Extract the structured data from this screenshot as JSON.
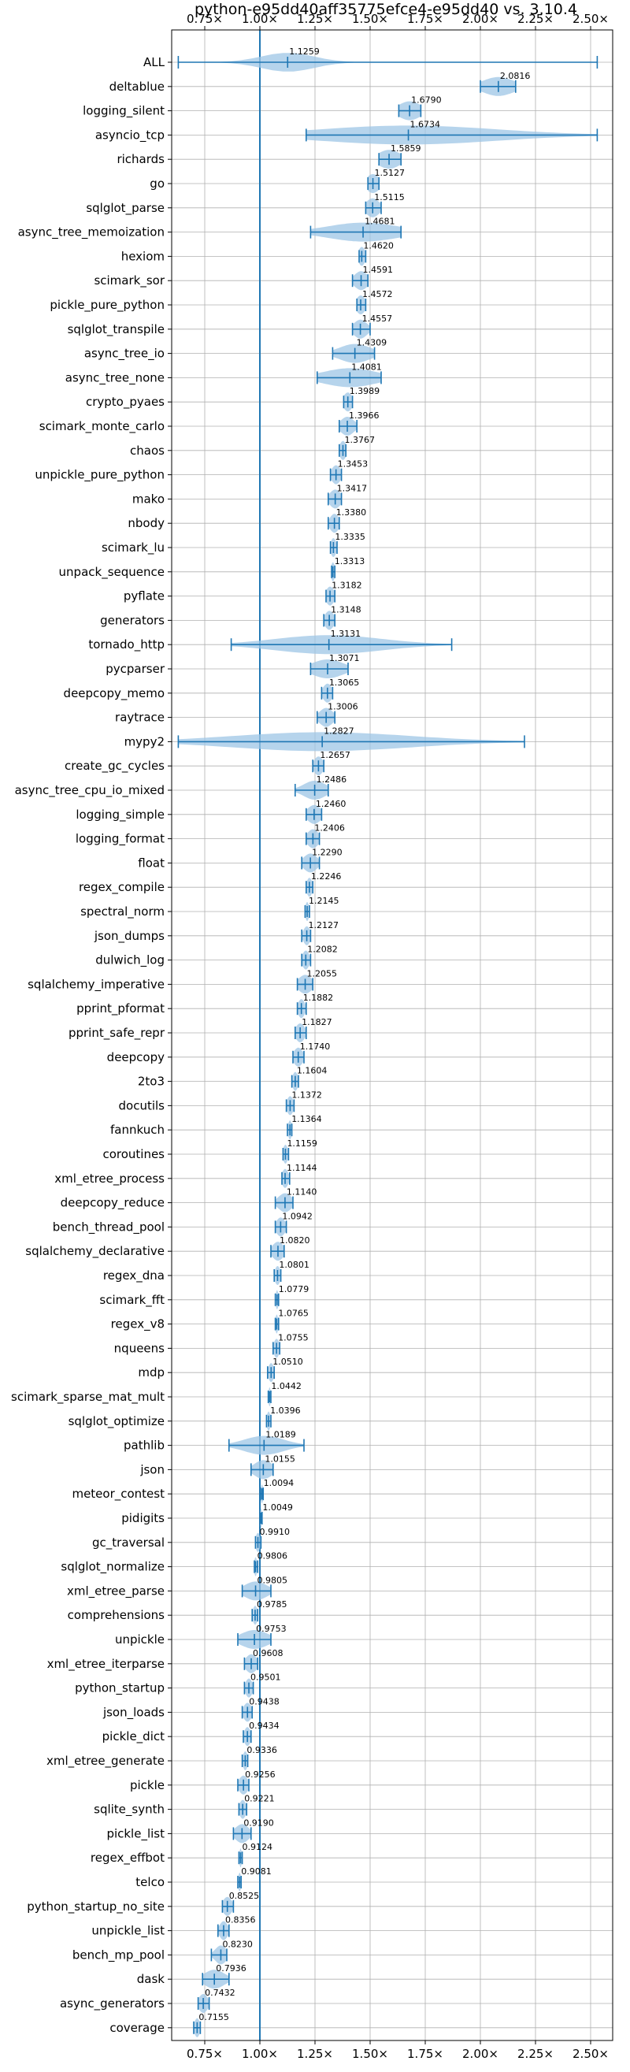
{
  "chart_data": {
    "type": "violin",
    "title": "python-e95dd40aff35775efce4-e95dd40 vs. 3.10.4",
    "xlabel": "",
    "ylabel": "",
    "xlim": [
      0.6,
      2.6
    ],
    "x_ticks": [
      0.75,
      1.0,
      1.25,
      1.5,
      1.75,
      2.0,
      2.25,
      2.5
    ],
    "x_tick_labels": [
      "0.75×",
      "1.00×",
      "1.25×",
      "1.50×",
      "1.75×",
      "2.00×",
      "2.25×",
      "2.50×"
    ],
    "reference_line": 1.0,
    "grid": true,
    "colors": {
      "violin": "#9ec5e6",
      "line": "#1f77b4"
    },
    "benchmarks": [
      {
        "name": "ALL",
        "label": "1.1259",
        "median": 1.1259,
        "min": 0.63,
        "max": 2.53,
        "spread": 0.12
      },
      {
        "name": "deltablue",
        "label": "2.0816",
        "median": 2.0816,
        "min": 2.0,
        "max": 2.16,
        "spread": 0.07
      },
      {
        "name": "logging_silent",
        "label": "1.6790",
        "median": 1.679,
        "min": 1.63,
        "max": 1.73,
        "spread": 0.05
      },
      {
        "name": "asyncio_tcp",
        "label": "1.6734",
        "median": 1.6734,
        "min": 1.21,
        "max": 2.53,
        "spread": 0.4
      },
      {
        "name": "richards",
        "label": "1.5859",
        "median": 1.5859,
        "min": 1.54,
        "max": 1.64,
        "spread": 0.05
      },
      {
        "name": "go",
        "label": "1.5127",
        "median": 1.5127,
        "min": 1.49,
        "max": 1.54,
        "spread": 0.03
      },
      {
        "name": "sqlglot_parse",
        "label": "1.5115",
        "median": 1.5115,
        "min": 1.48,
        "max": 1.55,
        "spread": 0.03
      },
      {
        "name": "async_tree_memoization",
        "label": "1.4681",
        "median": 1.4681,
        "min": 1.23,
        "max": 1.64,
        "spread": 0.16
      },
      {
        "name": "hexiom",
        "label": "1.4620",
        "median": 1.462,
        "min": 1.45,
        "max": 1.48,
        "spread": 0.015
      },
      {
        "name": "scimark_sor",
        "label": "1.4591",
        "median": 1.4591,
        "min": 1.42,
        "max": 1.49,
        "spread": 0.03
      },
      {
        "name": "pickle_pure_python",
        "label": "1.4572",
        "median": 1.4572,
        "min": 1.44,
        "max": 1.48,
        "spread": 0.02
      },
      {
        "name": "sqlglot_transpile",
        "label": "1.4557",
        "median": 1.4557,
        "min": 1.42,
        "max": 1.5,
        "spread": 0.03
      },
      {
        "name": "async_tree_io",
        "label": "1.4309",
        "median": 1.4309,
        "min": 1.33,
        "max": 1.52,
        "spread": 0.07
      },
      {
        "name": "async_tree_none",
        "label": "1.4081",
        "median": 1.4081,
        "min": 1.26,
        "max": 1.55,
        "spread": 0.12
      },
      {
        "name": "crypto_pyaes",
        "label": "1.3989",
        "median": 1.3989,
        "min": 1.38,
        "max": 1.42,
        "spread": 0.02
      },
      {
        "name": "scimark_monte_carlo",
        "label": "1.3966",
        "median": 1.3966,
        "min": 1.36,
        "max": 1.44,
        "spread": 0.03
      },
      {
        "name": "chaos",
        "label": "1.3767",
        "median": 1.3767,
        "min": 1.36,
        "max": 1.39,
        "spread": 0.015
      },
      {
        "name": "unpickle_pure_python",
        "label": "1.3453",
        "median": 1.3453,
        "min": 1.32,
        "max": 1.37,
        "spread": 0.02
      },
      {
        "name": "mako",
        "label": "1.3417",
        "median": 1.3417,
        "min": 1.31,
        "max": 1.37,
        "spread": 0.025
      },
      {
        "name": "nbody",
        "label": "1.3380",
        "median": 1.338,
        "min": 1.31,
        "max": 1.36,
        "spread": 0.02
      },
      {
        "name": "scimark_lu",
        "label": "1.3335",
        "median": 1.3335,
        "min": 1.32,
        "max": 1.35,
        "spread": 0.012
      },
      {
        "name": "unpack_sequence",
        "label": "1.3313",
        "median": 1.3313,
        "min": 1.325,
        "max": 1.34,
        "spread": 0.008
      },
      {
        "name": "pyflate",
        "label": "1.3182",
        "median": 1.3182,
        "min": 1.3,
        "max": 1.34,
        "spread": 0.018
      },
      {
        "name": "generators",
        "label": "1.3148",
        "median": 1.3148,
        "min": 1.29,
        "max": 1.34,
        "spread": 0.02
      },
      {
        "name": "tornado_http",
        "label": "1.3131",
        "median": 1.3131,
        "min": 0.87,
        "max": 1.87,
        "spread": 0.24
      },
      {
        "name": "pycparser",
        "label": "1.3071",
        "median": 1.3071,
        "min": 1.23,
        "max": 1.4,
        "spread": 0.07
      },
      {
        "name": "deepcopy_memo",
        "label": "1.3065",
        "median": 1.3065,
        "min": 1.28,
        "max": 1.33,
        "spread": 0.02
      },
      {
        "name": "raytrace",
        "label": "1.3006",
        "median": 1.3006,
        "min": 1.26,
        "max": 1.34,
        "spread": 0.03
      },
      {
        "name": "mypy2",
        "label": "1.2827",
        "median": 1.2827,
        "min": 0.63,
        "max": 2.2,
        "spread": 0.4
      },
      {
        "name": "create_gc_cycles",
        "label": "1.2657",
        "median": 1.2657,
        "min": 1.24,
        "max": 1.29,
        "spread": 0.02
      },
      {
        "name": "async_tree_cpu_io_mixed",
        "label": "1.2486",
        "median": 1.2486,
        "min": 1.16,
        "max": 1.31,
        "spread": 0.05
      },
      {
        "name": "logging_simple",
        "label": "1.2460",
        "median": 1.246,
        "min": 1.21,
        "max": 1.28,
        "spread": 0.03
      },
      {
        "name": "logging_format",
        "label": "1.2406",
        "median": 1.2406,
        "min": 1.21,
        "max": 1.27,
        "spread": 0.025
      },
      {
        "name": "float",
        "label": "1.2290",
        "median": 1.229,
        "min": 1.19,
        "max": 1.27,
        "spread": 0.03
      },
      {
        "name": "regex_compile",
        "label": "1.2246",
        "median": 1.2246,
        "min": 1.21,
        "max": 1.24,
        "spread": 0.012
      },
      {
        "name": "spectral_norm",
        "label": "1.2145",
        "median": 1.2145,
        "min": 1.205,
        "max": 1.225,
        "spread": 0.008
      },
      {
        "name": "json_dumps",
        "label": "1.2127",
        "median": 1.2127,
        "min": 1.19,
        "max": 1.23,
        "spread": 0.015
      },
      {
        "name": "dulwich_log",
        "label": "1.2082",
        "median": 1.2082,
        "min": 1.19,
        "max": 1.23,
        "spread": 0.015
      },
      {
        "name": "sqlalchemy_imperative",
        "label": "1.2055",
        "median": 1.2055,
        "min": 1.17,
        "max": 1.24,
        "spread": 0.03
      },
      {
        "name": "pprint_pformat",
        "label": "1.1882",
        "median": 1.1882,
        "min": 1.17,
        "max": 1.21,
        "spread": 0.015
      },
      {
        "name": "pprint_safe_repr",
        "label": "1.1827",
        "median": 1.1827,
        "min": 1.16,
        "max": 1.21,
        "spread": 0.02
      },
      {
        "name": "deepcopy",
        "label": "1.1740",
        "median": 1.174,
        "min": 1.15,
        "max": 1.2,
        "spread": 0.02
      },
      {
        "name": "2to3",
        "label": "1.1604",
        "median": 1.1604,
        "min": 1.145,
        "max": 1.175,
        "spread": 0.012
      },
      {
        "name": "docutils",
        "label": "1.1372",
        "median": 1.1372,
        "min": 1.12,
        "max": 1.155,
        "spread": 0.014
      },
      {
        "name": "fannkuch",
        "label": "1.1364",
        "median": 1.1364,
        "min": 1.125,
        "max": 1.145,
        "spread": 0.008
      },
      {
        "name": "coroutines",
        "label": "1.1159",
        "median": 1.1159,
        "min": 1.105,
        "max": 1.13,
        "spread": 0.01
      },
      {
        "name": "xml_etree_process",
        "label": "1.1144",
        "median": 1.1144,
        "min": 1.1,
        "max": 1.135,
        "spread": 0.014
      },
      {
        "name": "deepcopy_reduce",
        "label": "1.1140",
        "median": 1.114,
        "min": 1.07,
        "max": 1.15,
        "spread": 0.03
      },
      {
        "name": "bench_thread_pool",
        "label": "1.0942",
        "median": 1.0942,
        "min": 1.07,
        "max": 1.12,
        "spread": 0.02
      },
      {
        "name": "sqlalchemy_declarative",
        "label": "1.0820",
        "median": 1.082,
        "min": 1.05,
        "max": 1.11,
        "spread": 0.025
      },
      {
        "name": "regex_dna",
        "label": "1.0801",
        "median": 1.0801,
        "min": 1.065,
        "max": 1.095,
        "spread": 0.012
      },
      {
        "name": "scimark_fft",
        "label": "1.0779",
        "median": 1.0779,
        "min": 1.07,
        "max": 1.085,
        "spread": 0.006
      },
      {
        "name": "regex_v8",
        "label": "1.0765",
        "median": 1.0765,
        "min": 1.07,
        "max": 1.085,
        "spread": 0.006
      },
      {
        "name": "nqueens",
        "label": "1.0755",
        "median": 1.0755,
        "min": 1.06,
        "max": 1.09,
        "spread": 0.012
      },
      {
        "name": "mdp",
        "label": "1.0510",
        "median": 1.051,
        "min": 1.035,
        "max": 1.065,
        "spread": 0.012
      },
      {
        "name": "scimark_sparse_mat_mult",
        "label": "1.0442",
        "median": 1.0442,
        "min": 1.038,
        "max": 1.05,
        "spread": 0.005
      },
      {
        "name": "sqlglot_optimize",
        "label": "1.0396",
        "median": 1.0396,
        "min": 1.03,
        "max": 1.05,
        "spread": 0.008
      },
      {
        "name": "pathlib",
        "label": "1.0189",
        "median": 1.0189,
        "min": 0.86,
        "max": 1.2,
        "spread": 0.09
      },
      {
        "name": "json",
        "label": "1.0155",
        "median": 1.0155,
        "min": 0.96,
        "max": 1.06,
        "spread": 0.04
      },
      {
        "name": "meteor_contest",
        "label": "1.0094",
        "median": 1.0094,
        "min": 1.003,
        "max": 1.015,
        "spread": 0.005
      },
      {
        "name": "pidigits",
        "label": "1.0049",
        "median": 1.0049,
        "min": 1.0,
        "max": 1.01,
        "spread": 0.004
      },
      {
        "name": "gc_traversal",
        "label": "0.9910",
        "median": 0.991,
        "min": 0.98,
        "max": 1.005,
        "spread": 0.01
      },
      {
        "name": "sqlglot_normalize",
        "label": "0.9806",
        "median": 0.9806,
        "min": 0.975,
        "max": 0.99,
        "spread": 0.006
      },
      {
        "name": "xml_etree_parse",
        "label": "0.9805",
        "median": 0.9805,
        "min": 0.92,
        "max": 1.05,
        "spread": 0.05
      },
      {
        "name": "comprehensions",
        "label": "0.9785",
        "median": 0.9785,
        "min": 0.965,
        "max": 0.99,
        "spread": 0.01
      },
      {
        "name": "unpickle",
        "label": "0.9753",
        "median": 0.9753,
        "min": 0.9,
        "max": 1.05,
        "spread": 0.06
      },
      {
        "name": "xml_etree_iterparse",
        "label": "0.9608",
        "median": 0.9608,
        "min": 0.93,
        "max": 0.99,
        "spread": 0.025
      },
      {
        "name": "python_startup",
        "label": "0.9501",
        "median": 0.9501,
        "min": 0.93,
        "max": 0.97,
        "spread": 0.015
      },
      {
        "name": "json_loads",
        "label": "0.9438",
        "median": 0.9438,
        "min": 0.92,
        "max": 0.965,
        "spread": 0.018
      },
      {
        "name": "pickle_dict",
        "label": "0.9434",
        "median": 0.9434,
        "min": 0.925,
        "max": 0.96,
        "spread": 0.014
      },
      {
        "name": "xml_etree_generate",
        "label": "0.9336",
        "median": 0.9336,
        "min": 0.92,
        "max": 0.945,
        "spread": 0.01
      },
      {
        "name": "pickle",
        "label": "0.9256",
        "median": 0.9256,
        "min": 0.9,
        "max": 0.95,
        "spread": 0.02
      },
      {
        "name": "sqlite_synth",
        "label": "0.9221",
        "median": 0.9221,
        "min": 0.905,
        "max": 0.94,
        "spread": 0.014
      },
      {
        "name": "pickle_list",
        "label": "0.9190",
        "median": 0.919,
        "min": 0.88,
        "max": 0.96,
        "spread": 0.03
      },
      {
        "name": "regex_effbot",
        "label": "0.9124",
        "median": 0.9124,
        "min": 0.905,
        "max": 0.92,
        "spread": 0.005
      },
      {
        "name": "telco",
        "label": "0.9081",
        "median": 0.9081,
        "min": 0.9,
        "max": 0.915,
        "spread": 0.006
      },
      {
        "name": "python_startup_no_site",
        "label": "0.8525",
        "median": 0.8525,
        "min": 0.83,
        "max": 0.88,
        "spread": 0.02
      },
      {
        "name": "unpickle_list",
        "label": "0.8356",
        "median": 0.8356,
        "min": 0.81,
        "max": 0.86,
        "spread": 0.018
      },
      {
        "name": "bench_mp_pool",
        "label": "0.8230",
        "median": 0.823,
        "min": 0.78,
        "max": 0.85,
        "spread": 0.025
      },
      {
        "name": "dask",
        "label": "0.7936",
        "median": 0.7936,
        "min": 0.74,
        "max": 0.86,
        "spread": 0.045
      },
      {
        "name": "async_generators",
        "label": "0.7432",
        "median": 0.7432,
        "min": 0.72,
        "max": 0.77,
        "spread": 0.02
      },
      {
        "name": "coverage",
        "label": "0.7155",
        "median": 0.7155,
        "min": 0.7,
        "max": 0.73,
        "spread": 0.012
      }
    ]
  }
}
